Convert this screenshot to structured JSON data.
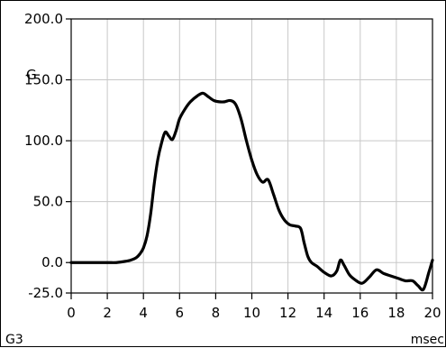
{
  "chart_data": {
    "type": "line",
    "title": "",
    "annotation": "G",
    "corner_label": "G3",
    "xlabel": "",
    "x_unit": "msec",
    "ylabel": "",
    "xlim": [
      0,
      20
    ],
    "ylim": [
      -25,
      200
    ],
    "x_ticks": [
      0,
      2,
      4,
      6,
      8,
      10,
      12,
      14,
      16,
      18,
      20
    ],
    "y_ticks": [
      -25,
      0,
      50,
      100,
      150,
      200
    ],
    "x_tick_labels": [
      "0",
      "2",
      "4",
      "6",
      "8",
      "10",
      "12",
      "14",
      "16",
      "18",
      "20"
    ],
    "y_tick_labels": [
      "-25.0",
      "0.0",
      "50.0",
      "100.0",
      "150.0",
      "200.0"
    ],
    "grid": true,
    "series": [
      {
        "x": [
          0,
          1,
          2,
          2.5,
          3,
          3.3,
          3.6,
          3.8,
          4.0,
          4.2,
          4.4,
          4.6,
          4.8,
          5.0,
          5.2,
          5.4,
          5.6,
          5.8,
          6.0,
          6.3,
          6.6,
          7.0,
          7.3,
          7.6,
          7.9,
          8.2,
          8.5,
          8.8,
          9.1,
          9.4,
          9.7,
          10.0,
          10.3,
          10.6,
          10.9,
          11.2,
          11.5,
          11.8,
          12.1,
          12.4,
          12.7,
          12.9,
          13.1,
          13.3,
          13.6,
          14.0,
          14.4,
          14.7,
          14.9,
          15.1,
          15.4,
          15.7,
          16.1,
          16.5,
          16.9,
          17.3,
          17.7,
          18.1,
          18.5,
          18.9,
          19.2,
          19.5,
          19.8,
          20.0
        ],
        "y": [
          0,
          0,
          0,
          0,
          1,
          2,
          4,
          7,
          12,
          22,
          40,
          65,
          85,
          98,
          107,
          104,
          101,
          108,
          118,
          126,
          132,
          137,
          139,
          136,
          133,
          132,
          132,
          133,
          130,
          118,
          100,
          84,
          72,
          66,
          68,
          56,
          43,
          35,
          31,
          30,
          28,
          16,
          5,
          0,
          -3,
          -8,
          -11,
          -7,
          2,
          -2,
          -10,
          -14,
          -17,
          -12,
          -6,
          -9,
          -11,
          -13,
          -15,
          -15,
          -19,
          -22,
          -8,
          2
        ]
      }
    ]
  }
}
